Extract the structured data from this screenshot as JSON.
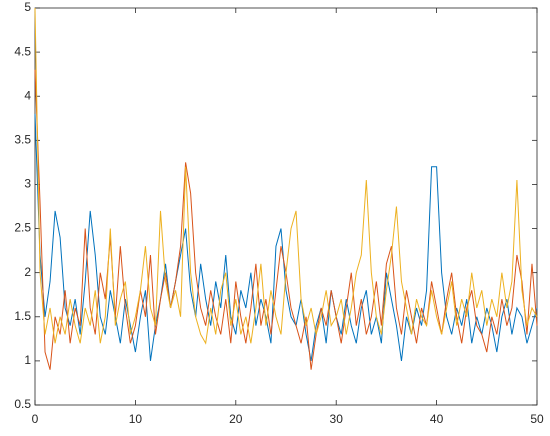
{
  "chart_data": {
    "type": "line",
    "x": [
      0,
      0.5,
      1,
      1.5,
      2,
      2.5,
      3,
      3.5,
      4,
      4.5,
      5,
      5.5,
      6,
      6.5,
      7,
      7.5,
      8,
      8.5,
      9,
      9.5,
      10,
      10.5,
      11,
      11.5,
      12,
      12.5,
      13,
      13.5,
      14,
      14.5,
      15,
      15.5,
      16,
      16.5,
      17,
      17.5,
      18,
      18.5,
      19,
      19.5,
      20,
      20.5,
      21,
      21.5,
      22,
      22.5,
      23,
      23.5,
      24,
      24.5,
      25,
      25.5,
      26,
      26.5,
      27,
      27.5,
      28,
      28.5,
      29,
      29.5,
      30,
      30.5,
      31,
      31.5,
      32,
      32.5,
      33,
      33.5,
      34,
      34.5,
      35,
      35.5,
      36,
      36.5,
      37,
      37.5,
      38,
      38.5,
      39,
      39.5,
      40,
      40.5,
      41,
      41.5,
      42,
      42.5,
      43,
      43.5,
      44,
      44.5,
      45,
      45.5,
      46,
      46.5,
      47,
      47.5,
      48,
      48.5,
      49,
      49.5,
      50
    ],
    "series": [
      {
        "color": "#0072bd",
        "values": [
          3.8,
          2.2,
          1.5,
          1.9,
          2.7,
          2.4,
          1.6,
          1.4,
          1.7,
          1.3,
          1.9,
          2.7,
          2.2,
          1.5,
          1.3,
          1.8,
          1.5,
          1.2,
          1.7,
          1.4,
          1.1,
          1.5,
          1.8,
          1.0,
          1.4,
          1.7,
          2.1,
          1.6,
          1.9,
          2.2,
          2.5,
          1.8,
          1.5,
          2.1,
          1.7,
          1.4,
          1.9,
          1.6,
          2.2,
          1.5,
          1.3,
          1.8,
          1.6,
          2.0,
          1.4,
          1.7,
          1.5,
          1.2,
          2.3,
          2.5,
          1.8,
          1.5,
          1.4,
          1.7,
          1.3,
          1.0,
          1.4,
          1.6,
          1.2,
          1.8,
          1.5,
          1.3,
          1.7,
          1.4,
          1.2,
          1.6,
          1.8,
          1.3,
          1.5,
          1.2,
          2.0,
          1.7,
          1.4,
          1.0,
          1.5,
          1.3,
          1.6,
          1.4,
          1.8,
          3.2,
          3.2,
          2.0,
          1.5,
          1.3,
          1.6,
          1.4,
          1.7,
          1.2,
          1.5,
          1.3,
          1.6,
          1.4,
          1.1,
          1.5,
          1.7,
          1.3,
          1.6,
          1.5,
          1.2,
          1.4,
          1.6
        ]
      },
      {
        "color": "#d95319",
        "values": [
          4.3,
          2.8,
          1.1,
          0.9,
          1.5,
          1.3,
          1.8,
          1.2,
          1.6,
          1.4,
          2.5,
          1.6,
          1.3,
          2.0,
          1.7,
          2.4,
          1.5,
          2.3,
          1.6,
          1.2,
          1.4,
          1.8,
          1.5,
          2.2,
          1.3,
          1.7,
          2.0,
          1.6,
          1.9,
          2.3,
          3.25,
          2.9,
          2.0,
          1.6,
          1.4,
          1.8,
          1.5,
          1.3,
          1.7,
          1.2,
          1.9,
          1.5,
          1.2,
          1.6,
          2.1,
          1.4,
          1.7,
          1.3,
          1.8,
          2.3,
          2.0,
          1.6,
          1.4,
          1.2,
          1.5,
          0.9,
          1.3,
          1.6,
          1.4,
          1.8,
          1.5,
          1.2,
          1.6,
          2.0,
          1.4,
          1.7,
          1.3,
          1.5,
          1.9,
          1.4,
          2.1,
          2.3,
          1.6,
          1.3,
          1.8,
          1.5,
          1.2,
          1.6,
          1.4,
          1.9,
          1.6,
          1.3,
          1.7,
          2.0,
          1.5,
          1.2,
          1.6,
          1.8,
          1.4,
          1.3,
          1.1,
          1.5,
          1.3,
          1.7,
          1.4,
          1.6,
          2.2,
          1.9,
          1.3,
          2.1,
          1.4
        ]
      },
      {
        "color": "#edb120",
        "values": [
          5.0,
          2.0,
          1.3,
          1.6,
          1.2,
          1.5,
          1.3,
          1.7,
          1.4,
          1.2,
          1.6,
          1.4,
          1.8,
          1.2,
          1.5,
          2.5,
          1.4,
          1.7,
          1.9,
          1.3,
          1.5,
          1.8,
          2.3,
          1.6,
          1.4,
          2.7,
          1.9,
          1.6,
          1.8,
          1.5,
          3.2,
          2.0,
          1.5,
          1.3,
          1.2,
          1.6,
          1.3,
          1.8,
          2.0,
          1.4,
          1.7,
          1.3,
          1.5,
          1.2,
          1.6,
          2.1,
          1.4,
          1.8,
          1.5,
          1.3,
          2.0,
          2.5,
          2.7,
          1.7,
          1.4,
          1.6,
          1.3,
          1.5,
          1.8,
          1.4,
          1.5,
          1.7,
          1.3,
          1.6,
          2.0,
          2.2,
          3.05,
          2.0,
          1.5,
          1.3,
          1.8,
          2.2,
          2.75,
          1.9,
          1.6,
          1.3,
          1.7,
          1.5,
          1.4,
          1.8,
          1.5,
          1.3,
          1.6,
          1.9,
          1.4,
          1.7,
          1.5,
          2.0,
          1.6,
          1.8,
          1.4,
          1.7,
          1.5,
          2.0,
          1.6,
          1.9,
          3.05,
          1.8,
          1.4,
          1.6,
          1.5
        ]
      }
    ],
    "xlim": [
      0,
      50
    ],
    "xticks": [
      0,
      10,
      20,
      30,
      40,
      50
    ],
    "ylim": [
      0.5,
      5
    ],
    "yticks": [
      0.5,
      1,
      1.5,
      2,
      2.5,
      3,
      3.5,
      4,
      4.5,
      5
    ]
  }
}
